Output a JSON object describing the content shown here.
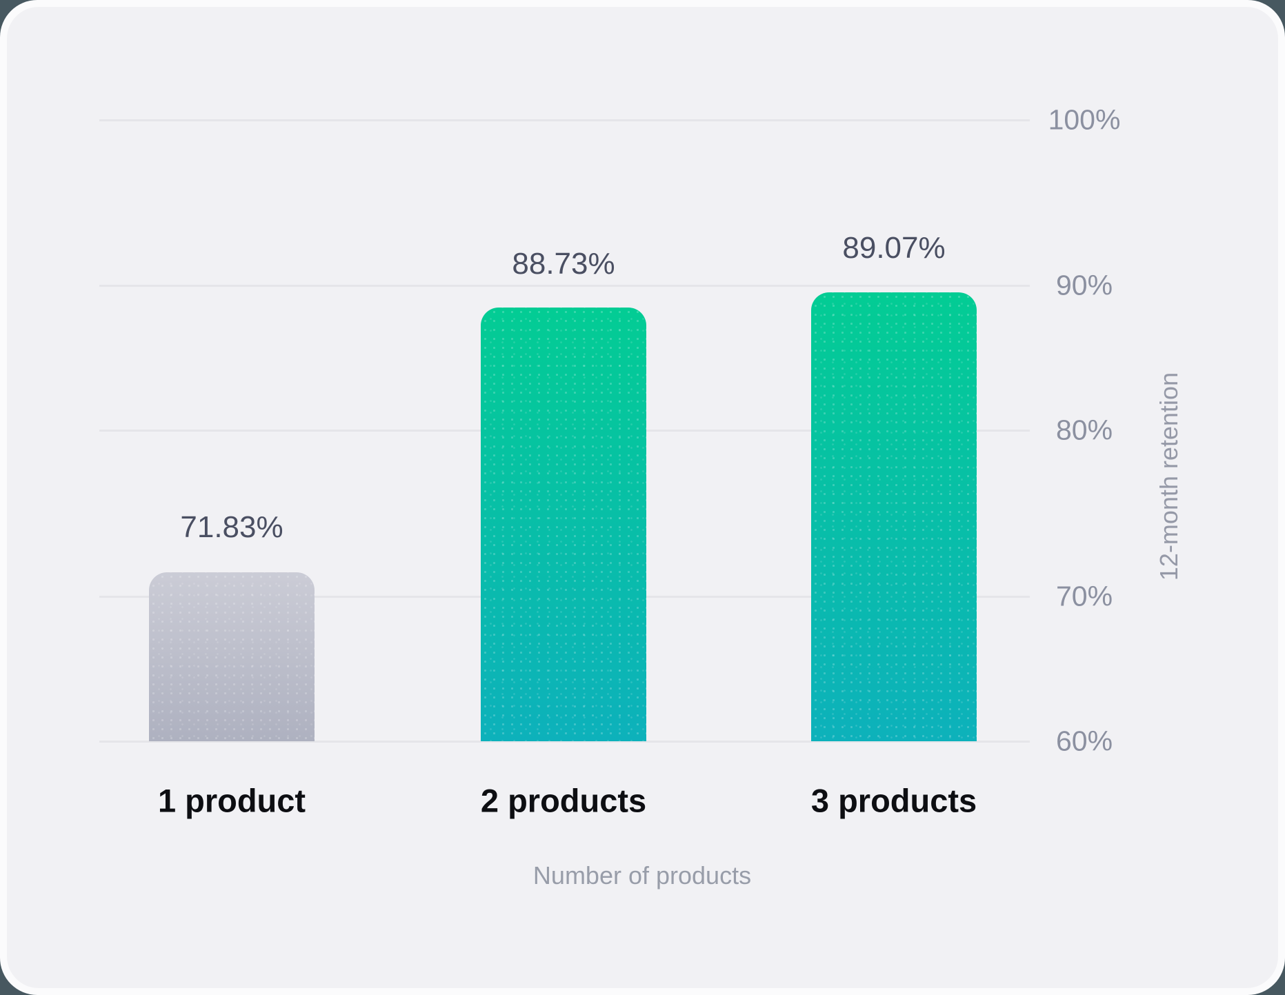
{
  "chart_data": {
    "type": "bar",
    "title": "",
    "categories": [
      "1 product",
      "2 products",
      "3 products"
    ],
    "values": [
      71.83,
      88.73,
      89.07
    ],
    "value_labels": [
      "71.83%",
      "88.73%",
      "89.07%"
    ],
    "xlabel": "Number of products",
    "ylabel": "12-month retention",
    "ylim": [
      60,
      100
    ],
    "ytick_labels": [
      "100%",
      "90%",
      "80%",
      "70%",
      "60%"
    ],
    "yticks": [
      100,
      90,
      80,
      70,
      60
    ],
    "grid": true,
    "legend": "none",
    "bar_styles": [
      {
        "name": "gray-gradient",
        "top": "#cbccd6",
        "bottom": "#aeb1c0"
      },
      {
        "name": "green-gradient",
        "top": "#03cc94",
        "bottom": "#0db1bb"
      },
      {
        "name": "green-gradient",
        "top": "#03cc94",
        "bottom": "#0db1bb"
      }
    ],
    "colors": {
      "surface": "#f1f1f4",
      "card": "#fbfbfc",
      "page_background": "#475860",
      "gridline": "#e5e5e9",
      "value_text": "#4a4f62",
      "tick_text": "#8b90a0",
      "axis_title_text": "#989da9",
      "category_text": "#0d0e12"
    }
  }
}
